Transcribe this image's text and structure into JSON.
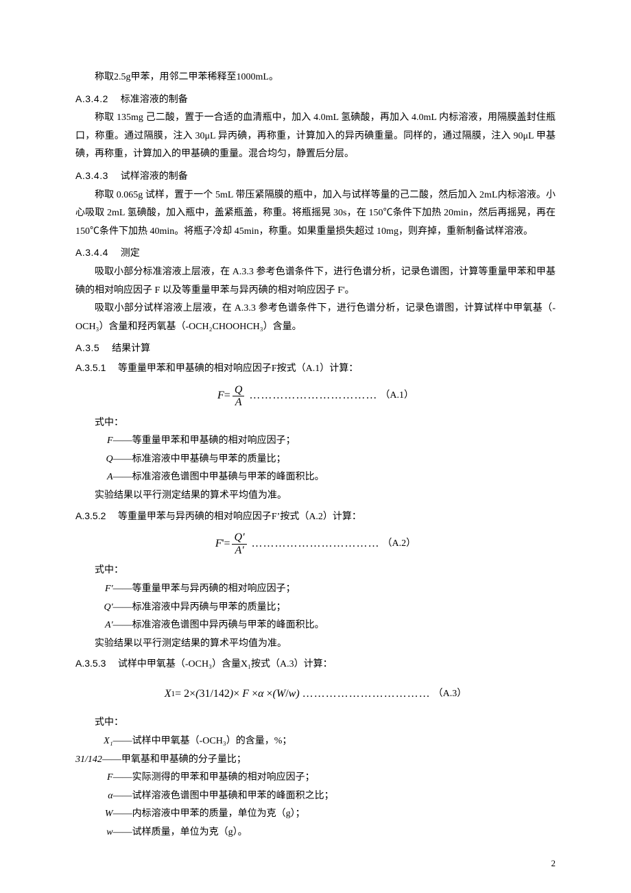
{
  "p_intro": "称取2.5g甲苯，用邻二甲苯稀释至1000mL。",
  "h_A342": {
    "num": "A.3.4.2",
    "title": "标准溶液的制备"
  },
  "p_A342": "称取 135mg 己二酸，置于一合适的血清瓶中，加入 4.0mL 氢碘酸，再加入 4.0mL 内标溶液，用隔膜盖封住瓶口，称重。通过隔膜，注入 30μL 异丙碘，再称重，计算加入的异丙碘重量。同样的，通过隔膜，注入 90μL 甲基碘，再称重，计算加入的甲基碘的重量。混合均匀，静置后分层。",
  "h_A343": {
    "num": "A.3.4.3",
    "title": "试样溶液的制备"
  },
  "p_A343": "称取 0.065g 试样，置于一个 5mL 带压紧隔膜的瓶中，加入与试样等量的己二酸，然后加入 2mL内标溶液。小心吸取 2mL 氢碘酸，加入瓶中，盖紧瓶盖，称重。将瓶摇晃 30s，在 150℃条件下加热 20min，然后再摇晃，再在 150℃条件下加热 40min。将瓶子冷却 45min，称重。如果重量损失超过 10mg，则弃掉，重新制备试样溶液。",
  "h_A344": {
    "num": "A.3.4.4",
    "title": "测定"
  },
  "p_A344a": "吸取小部分标准溶液上层液，在 A.3.3 参考色谱条件下，进行色谱分析，记录色谱图，计算等重量甲苯和甲基碘的相对响应因子 F 以及等重量甲苯与异丙碘的相对响应因子 F'。",
  "p_A344b": "吸取小部分试样溶液上层液，在 A.3.3 参考色谱条件下，进行色谱分析，记录色谱图，计算试样中甲氧基（-OCH₃）含量和羟丙氧基（-OCH₂CHOOHCH₃）含量。",
  "h_A35": {
    "num": "A.3.5",
    "title": "结果计算"
  },
  "h_A351": {
    "num": "A.3.5.1",
    "txt": "等重量甲苯和甲基碘的相对响应因子F按式（A.1）计算："
  },
  "eq_A1": {
    "lhs": "F",
    "eq": " = ",
    "num": "Q",
    "den": "A",
    "dots": "……………………………",
    "label": "（A.1）"
  },
  "where": "式中：",
  "defs_A1": [
    {
      "sym": "F",
      "txt": "等重量甲苯和甲基碘的相对响应因子；"
    },
    {
      "sym": "Q",
      "txt": "标准溶液中甲基碘与甲苯的质量比；"
    },
    {
      "sym": "A",
      "txt": "标准溶液色谱图中甲基碘与甲苯的峰面积比。"
    }
  ],
  "avg_note": "实验结果以平行测定结果的算术平均值为准。",
  "h_A352": {
    "num": "A.3.5.2",
    "txt": "等重量甲苯与异丙碘的相对响应因子F’按式（A.2）计算："
  },
  "eq_A2": {
    "lhs": "F",
    "lhs_suffix": "' ",
    "eq": "= ",
    "num": "Q'",
    "den": "A'",
    "dots": "……………………………",
    "label": "（A.2）"
  },
  "defs_A2": [
    {
      "sym": "F'",
      "txt": "等重量甲苯与异丙碘的相对响应因子；"
    },
    {
      "sym": "Q'",
      "txt": "标准溶液中异丙碘与甲苯的质量比；"
    },
    {
      "sym": "A'",
      "txt": "标准溶液色谱图中异丙碘与甲苯的峰面积比。"
    }
  ],
  "h_A353": {
    "num": "A.3.5.3",
    "txt": "试样中甲氧基（-OCH₃）含量X₁按式（A.3）计算："
  },
  "eq_A3": {
    "expr_pre": "X",
    "expr_sub": "1",
    "expr_body": " = 2×(31/142)× F ×α ×(W/w)",
    "dots": "……………………………",
    "label": "（A.3）"
  },
  "defs_A3": [
    {
      "sym": "X₁",
      "txt": "试样中甲氧基（-OCH₃）的含量，%；",
      "wide": false
    },
    {
      "sym": "31/142",
      "txt": "甲氧基和甲基碘的分子量比；",
      "wide": true,
      "noindent": true
    },
    {
      "sym": "F",
      "txt": "实际测得的甲苯和甲基碘的相对响应因子；"
    },
    {
      "sym": "α",
      "txt": "试样溶液色谱图中甲基碘和甲苯的峰面积之比；"
    },
    {
      "sym": "W",
      "txt": "内标溶液中甲苯的质量，单位为克（g）；"
    },
    {
      "sym": "w",
      "txt": "试样质量，单位为克（g）。"
    }
  ],
  "sep": "——",
  "page_number": "2"
}
